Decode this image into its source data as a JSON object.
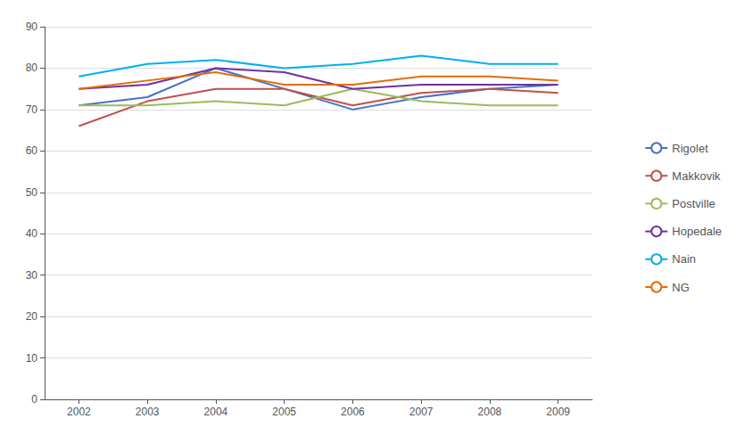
{
  "chart_data": {
    "type": "line",
    "x": [
      2002,
      2003,
      2004,
      2005,
      2006,
      2007,
      2008,
      2009
    ],
    "xlim": [
      2001.5,
      2009.5
    ],
    "xticks": [
      2002,
      2003,
      2004,
      2005,
      2006,
      2007,
      2008,
      2009
    ],
    "ylim": [
      0,
      90
    ],
    "yticks": [
      0,
      10,
      20,
      30,
      40,
      50,
      60,
      70,
      80,
      90
    ],
    "grid": true,
    "legend": "right",
    "series": [
      {
        "name": "Rigolet",
        "color": "#4472C4",
        "values": [
          71,
          73,
          80,
          75,
          70,
          73,
          75,
          76
        ]
      },
      {
        "name": "Makkovik",
        "color": "#C0504D",
        "values": [
          66,
          72,
          75,
          75,
          71,
          74,
          75,
          74
        ]
      },
      {
        "name": "Postville",
        "color": "#9BBB59",
        "values": [
          71,
          71,
          72,
          71,
          75,
          72,
          71,
          71
        ]
      },
      {
        "name": "Hopedale",
        "color": "#7030A0",
        "values": [
          75,
          76,
          80,
          79,
          75,
          76,
          76,
          76
        ]
      },
      {
        "name": "Nain",
        "color": "#00B0F0",
        "values": [
          78,
          81,
          82,
          80,
          81,
          83,
          81,
          81
        ]
      },
      {
        "name": "NG",
        "color": "#E36C09",
        "values": [
          75,
          77,
          79,
          76,
          76,
          78,
          78,
          77
        ]
      }
    ]
  }
}
